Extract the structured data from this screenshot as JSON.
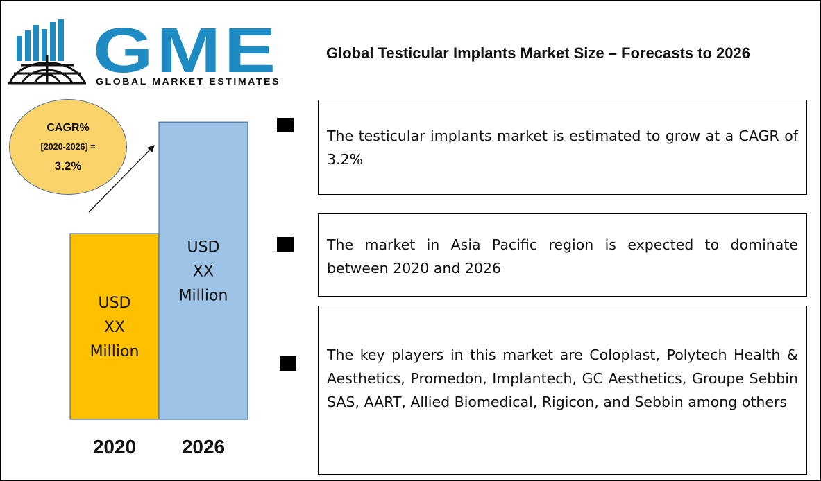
{
  "logo": {
    "brand": "GME",
    "tagline": "GLOBAL MARKET ESTIMATES"
  },
  "title": "Global Testicular Implants Market Size – Forecasts to 2026",
  "cagr": {
    "line1": "CAGR%",
    "line2": "[2020-2026] =",
    "line3": "3.2%"
  },
  "highlights": [
    {
      "text": "The testicular implants market is estimated to grow at a CAGR of 3.2%"
    },
    {
      "text": "The market in Asia Pacific region is expected to dominate between 2020 and 2026"
    },
    {
      "text": "The key players in this market are Coloplast, Polytech Health & Aesthetics, Promedon, Implantech, GC Aesthetics, Groupe Sebbin SAS, AART, Allied Biomedical, Rigicon, and Sebbin among others"
    }
  ],
  "chart_data": {
    "type": "bar",
    "categories": [
      "2020",
      "2026"
    ],
    "values": [
      1.0,
      1.6
    ],
    "bar_labels": [
      [
        "USD",
        "XX",
        "Million"
      ],
      [
        "USD",
        "XX",
        "Million"
      ]
    ],
    "colors": [
      "#ffc000",
      "#9dc3e6"
    ],
    "title": "",
    "xlabel": "",
    "ylabel": "",
    "grid": false,
    "legend": "none"
  },
  "colors": {
    "logo_blue": "#1e8bc3",
    "logo_dark": "#111111",
    "cagr_fill": "#fad46b"
  }
}
